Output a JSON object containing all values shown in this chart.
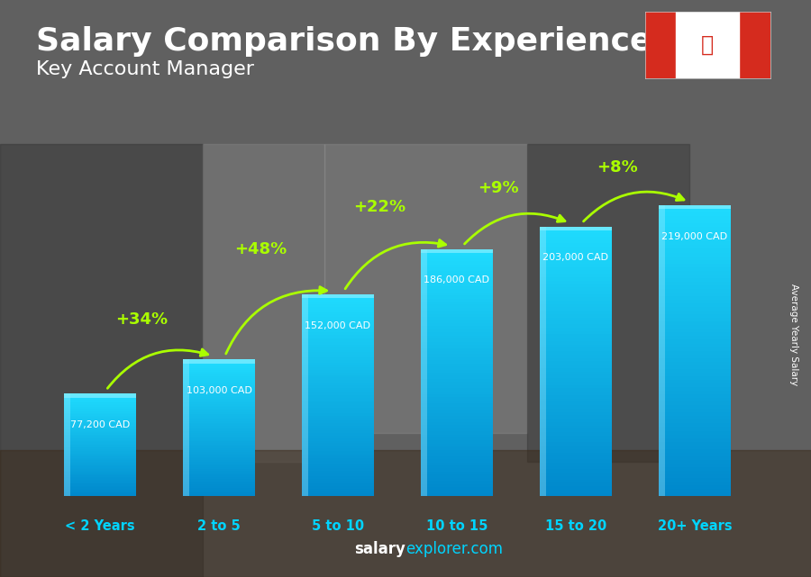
{
  "title": "Salary Comparison By Experience",
  "subtitle": "Key Account Manager",
  "categories": [
    "< 2 Years",
    "2 to 5",
    "5 to 10",
    "10 to 15",
    "15 to 20",
    "20+ Years"
  ],
  "values": [
    77200,
    103000,
    152000,
    186000,
    203000,
    219000
  ],
  "value_labels": [
    "77,200 CAD",
    "103,000 CAD",
    "152,000 CAD",
    "186,000 CAD",
    "203,000 CAD",
    "219,000 CAD"
  ],
  "pct_changes": [
    "+34%",
    "+48%",
    "+22%",
    "+9%",
    "+8%"
  ],
  "pct_color": "#aaff00",
  "bar_color_light": "#00d4ff",
  "bar_color_dark": "#0077bb",
  "cat_label_color": "#00d4ff",
  "ylabel_side": "Average Yearly Salary",
  "bg_color": "#555555",
  "footer_bold": "salary",
  "footer_normal": "explorer.com",
  "title_fontsize": 26,
  "subtitle_fontsize": 16
}
